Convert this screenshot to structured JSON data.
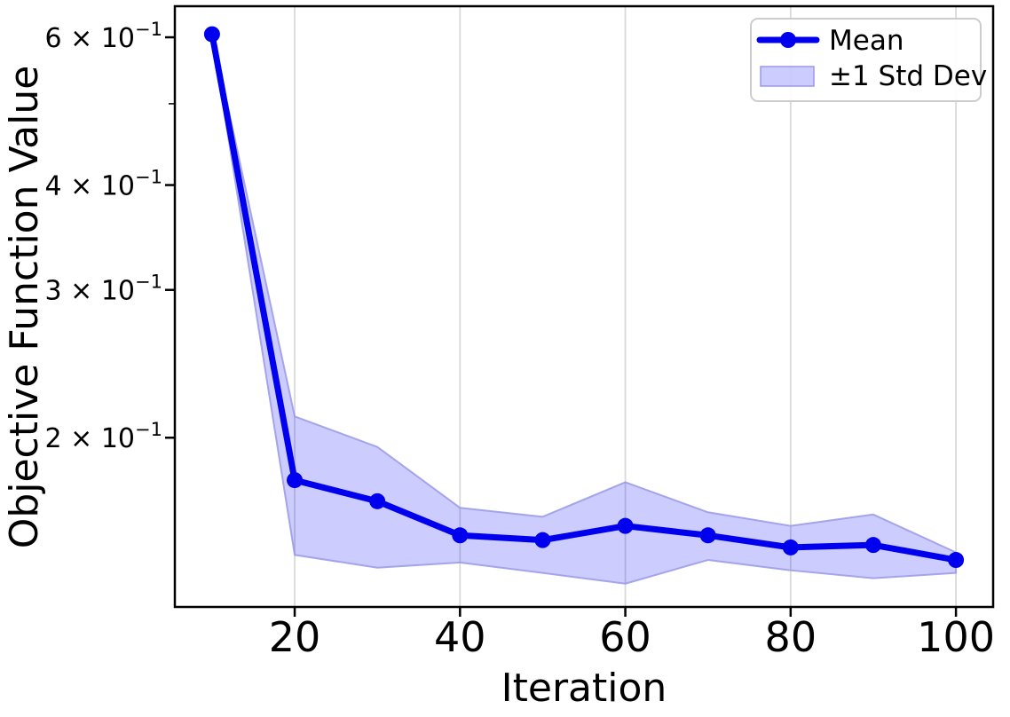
{
  "figure": {
    "background_color": "#ffffff",
    "spine_color": "#000000"
  },
  "chart_data": {
    "type": "line",
    "title": "",
    "xlabel": "Iteration",
    "ylabel": "Objective Function Value",
    "xscale": "linear",
    "yscale": "log",
    "xlim": [
      5.5,
      104.5
    ],
    "ylim": [
      0.1257,
      0.6534
    ],
    "grid": {
      "axis": "x",
      "on": true,
      "color": "#d9d9d9"
    },
    "x": [
      10,
      20,
      30,
      40,
      50,
      60,
      70,
      80,
      90,
      100
    ],
    "series": [
      {
        "name": "Mean",
        "values": [
          0.605,
          0.178,
          0.168,
          0.153,
          0.151,
          0.157,
          0.153,
          0.148,
          0.149,
          0.143
        ],
        "color": "#0000ee",
        "marker": "circle"
      }
    ],
    "band": {
      "name": "±1 Std Dev",
      "upper": [
        0.607,
        0.212,
        0.195,
        0.165,
        0.161,
        0.177,
        0.163,
        0.157,
        0.162,
        0.146
      ],
      "lower": [
        0.603,
        0.145,
        0.14,
        0.142,
        0.138,
        0.134,
        0.143,
        0.139,
        0.136,
        0.138
      ],
      "fill_color": "#0000ff",
      "fill_opacity": 0.2,
      "edge_color": "#9999e8"
    },
    "x_ticks": [
      {
        "value": 20,
        "label": "20"
      },
      {
        "value": 40,
        "label": "40"
      },
      {
        "value": 60,
        "label": "60"
      },
      {
        "value": 80,
        "label": "80"
      },
      {
        "value": 100,
        "label": "100"
      }
    ],
    "y_ticks": [
      {
        "value": 0.6,
        "label": "6 × 10⁻¹",
        "base": "6 × 10",
        "sup": "−1",
        "major": true
      },
      {
        "value": 0.5,
        "label": "",
        "base": "",
        "sup": "",
        "major": false
      },
      {
        "value": 0.4,
        "label": "4 × 10⁻¹",
        "base": "4 × 10",
        "sup": "−1",
        "major": true
      },
      {
        "value": 0.3,
        "label": "3 × 10⁻¹",
        "base": "3 × 10",
        "sup": "−1",
        "major": true
      },
      {
        "value": 0.2,
        "label": "2 × 10⁻¹",
        "base": "2 × 10",
        "sup": "−1",
        "major": true
      }
    ],
    "legend": {
      "position": "upper right",
      "entries": [
        "Mean",
        "±1 Std Dev"
      ]
    }
  }
}
